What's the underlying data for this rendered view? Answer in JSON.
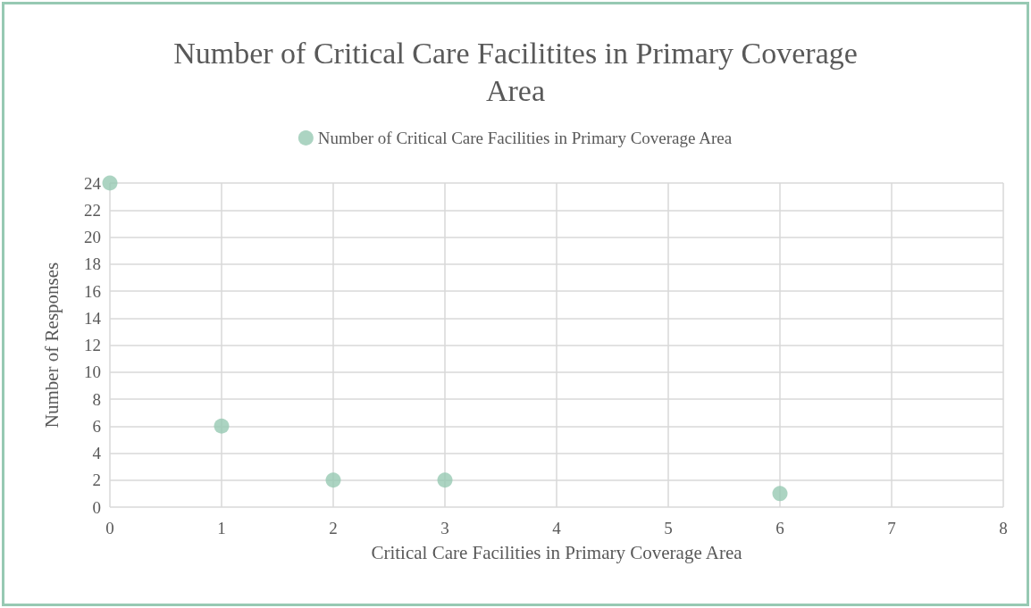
{
  "chart_data": {
    "type": "scatter",
    "title": "Number of Critical Care Facilitites in Primary Coverage\nArea",
    "xlabel": "Critical Care Facilities in Primary Coverage Area",
    "ylabel": "Number of Responses",
    "series": [
      {
        "name": "Number of Critical Care Facilities in Primary Coverage Area",
        "color": "#97c9b3",
        "x": [
          0,
          1,
          2,
          3,
          6
        ],
        "values": [
          24,
          6,
          2,
          2,
          1
        ]
      }
    ],
    "xlim": [
      0,
      8
    ],
    "xticks": [
      0,
      1,
      2,
      3,
      4,
      5,
      6,
      7,
      8
    ],
    "ylim": [
      0,
      24
    ],
    "yticks": [
      0,
      2,
      4,
      6,
      8,
      10,
      12,
      14,
      16,
      18,
      20,
      22,
      24
    ],
    "grid": true,
    "legend": "top",
    "marker": "circle"
  }
}
